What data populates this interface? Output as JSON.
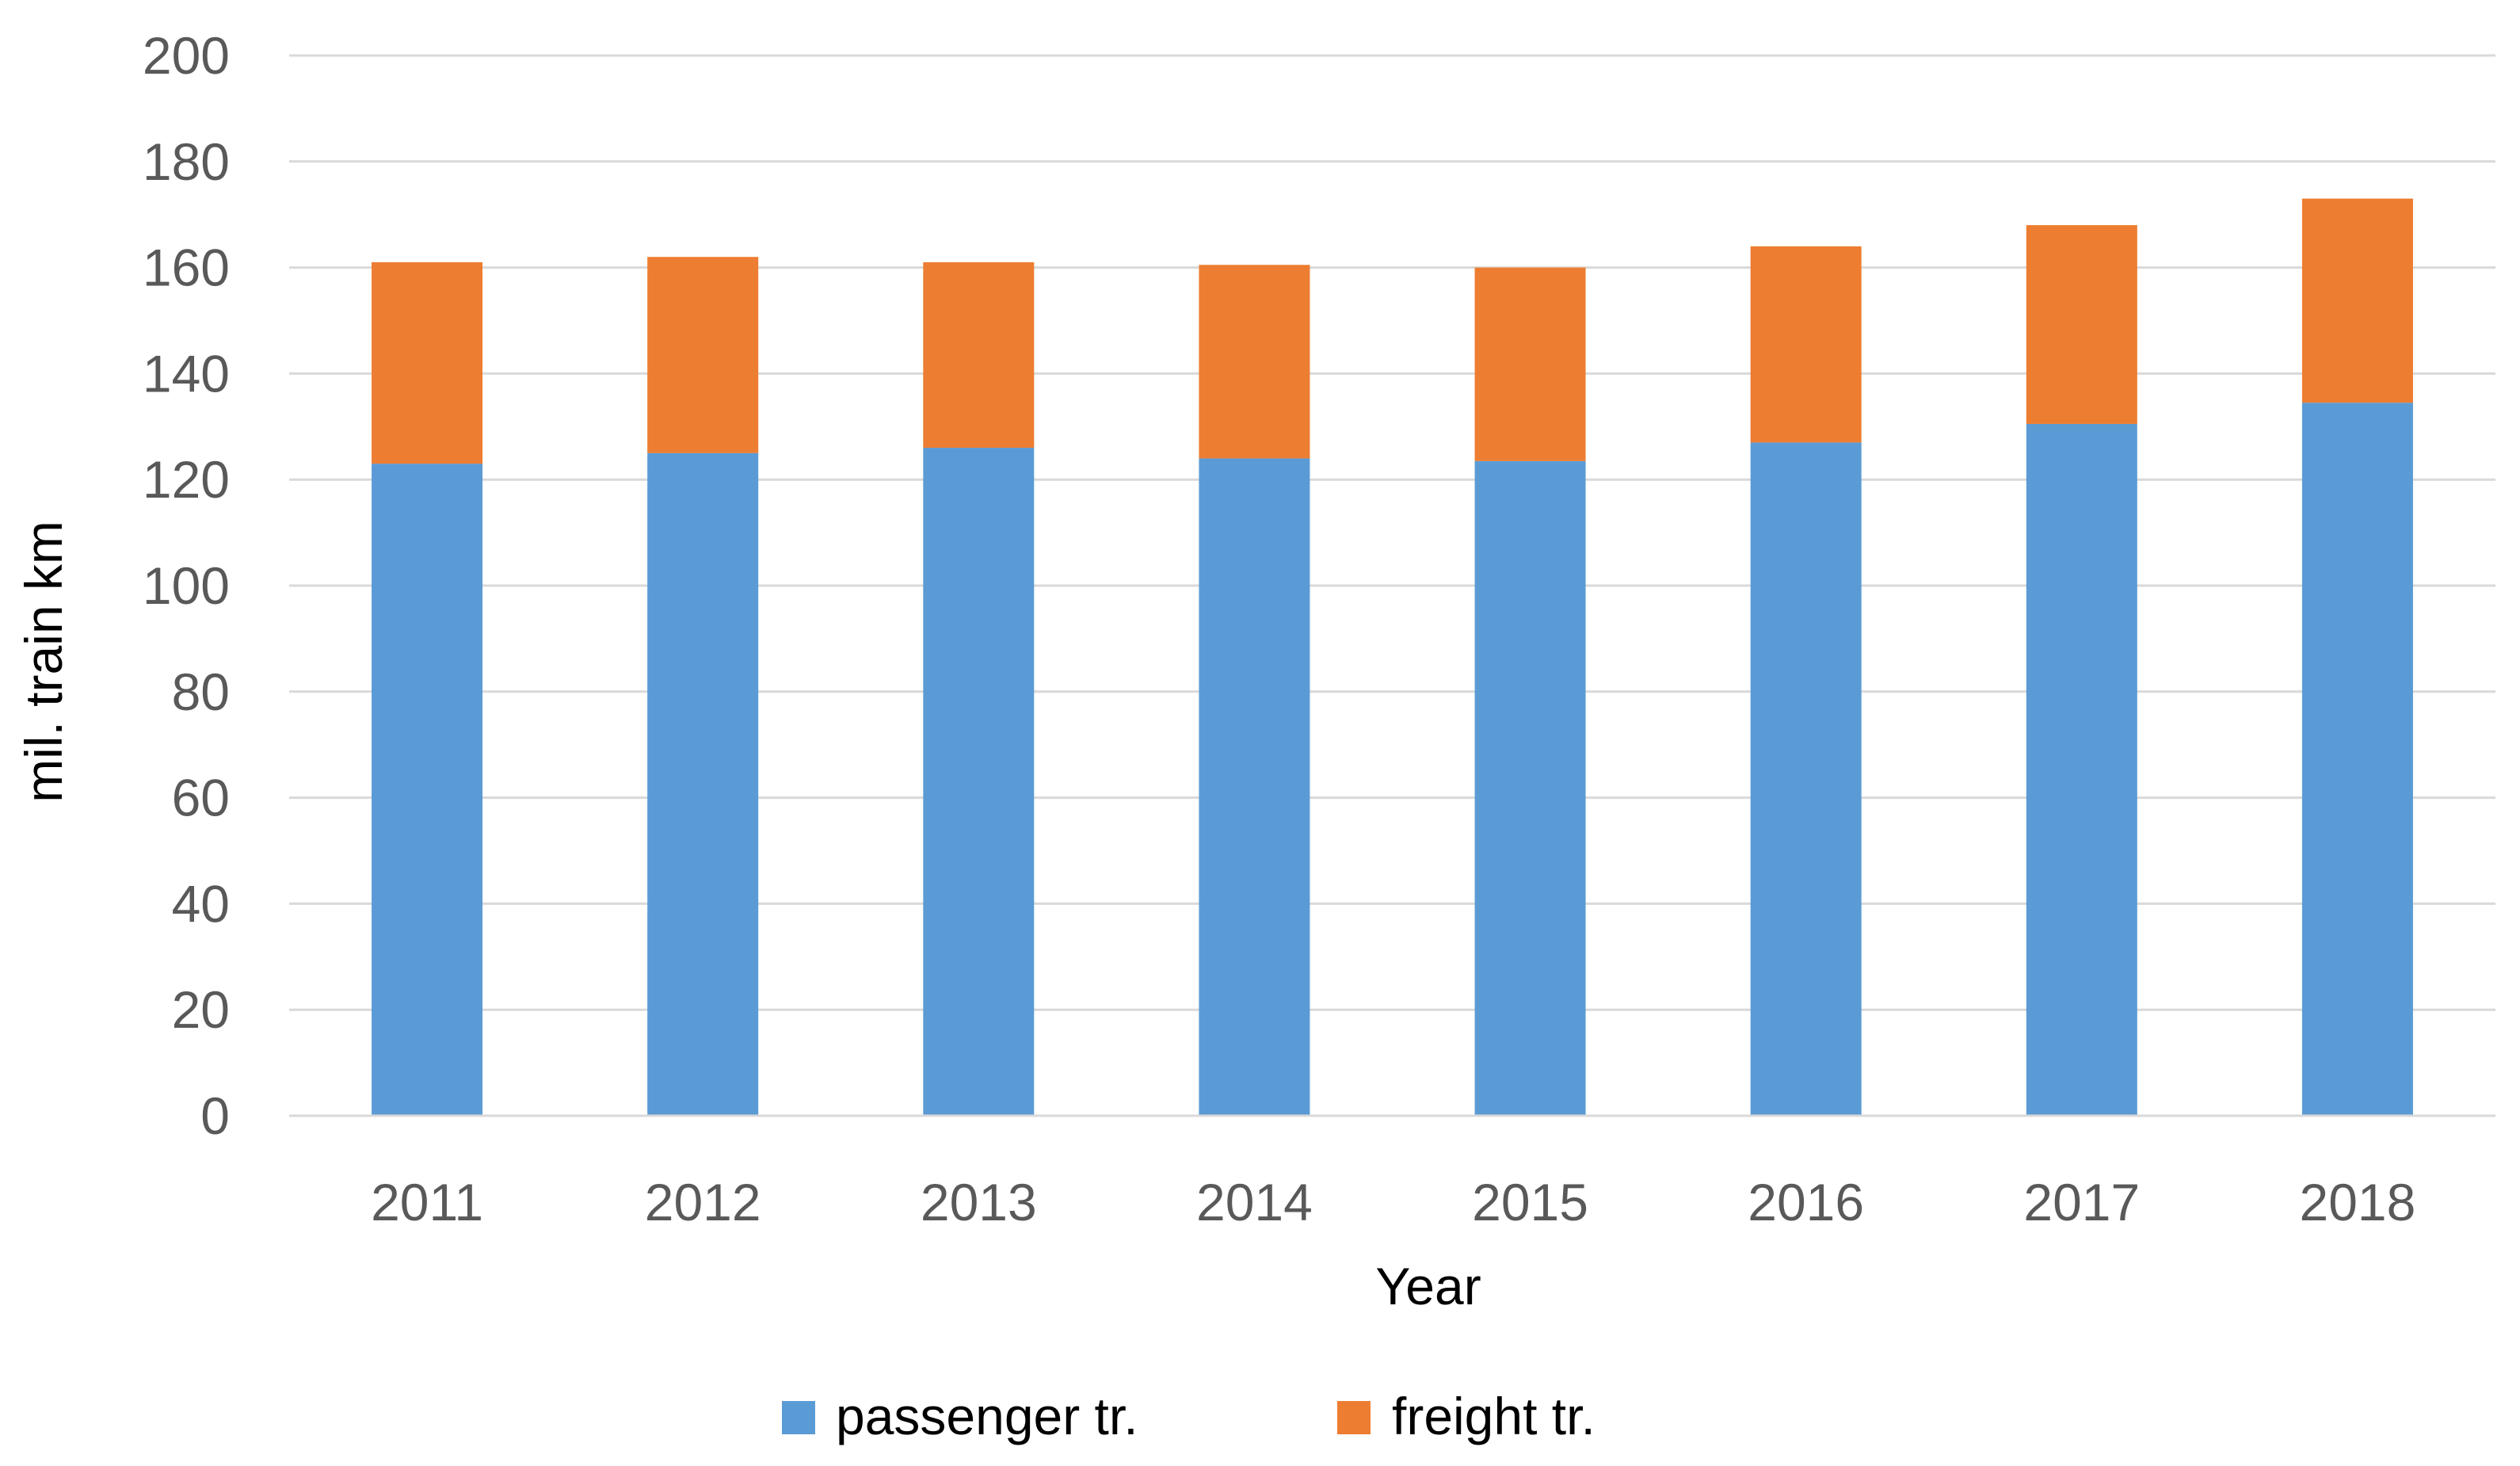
{
  "colors": {
    "passenger": "#5B9BD5",
    "freight": "#ED7D31",
    "grid": "#D9D9D9"
  },
  "chart_data": {
    "type": "bar",
    "stacked": true,
    "title": "",
    "xlabel": "Year",
    "ylabel": "mil. train km",
    "categories": [
      "2011",
      "2012",
      "2013",
      "2014",
      "2015",
      "2016",
      "2017",
      "2018"
    ],
    "ylim": [
      0,
      200
    ],
    "yticks": [
      0,
      20,
      40,
      60,
      80,
      100,
      120,
      140,
      160,
      180,
      200
    ],
    "grid": true,
    "legend_position": "bottom",
    "series": [
      {
        "name": "passenger tr.",
        "values": [
          123,
          125,
          126,
          124,
          123.5,
          127,
          130.5,
          134.5
        ]
      },
      {
        "name": "freight tr.",
        "values": [
          38,
          37,
          35,
          36.5,
          36.5,
          37,
          37.5,
          38.5
        ]
      }
    ]
  }
}
